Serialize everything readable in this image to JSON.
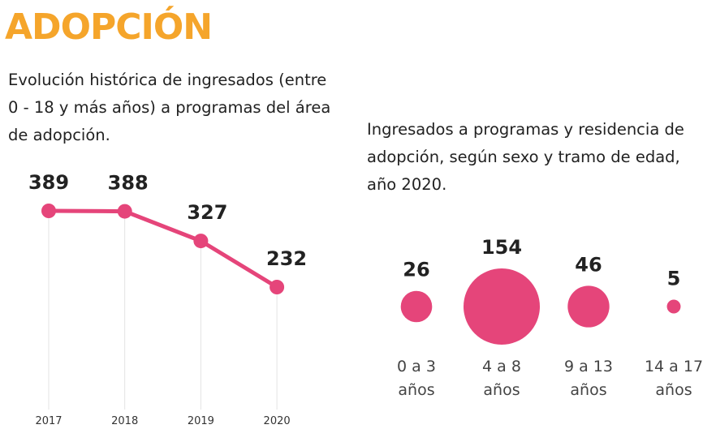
{
  "title": "ADOPCIÓN",
  "chart_data": [
    {
      "type": "line",
      "title": "Evolución histórica de ingresados (entre 0 - 18 y más años) a programas del área de adopción.",
      "categories": [
        "2017",
        "2018",
        "2019",
        "2020"
      ],
      "values": [
        389,
        388,
        327,
        232
      ],
      "color": "#e5457a"
    },
    {
      "type": "bubble",
      "title": "Ingresados a programas y residencia de adopción, según sexo y tramo de edad, año 2020.",
      "categories": [
        "0 a 3 años",
        "4 a 8 años",
        "9 a 13 años",
        "14 a 17 años"
      ],
      "values": [
        26,
        154,
        46,
        5
      ],
      "color": "#e5457a"
    }
  ]
}
